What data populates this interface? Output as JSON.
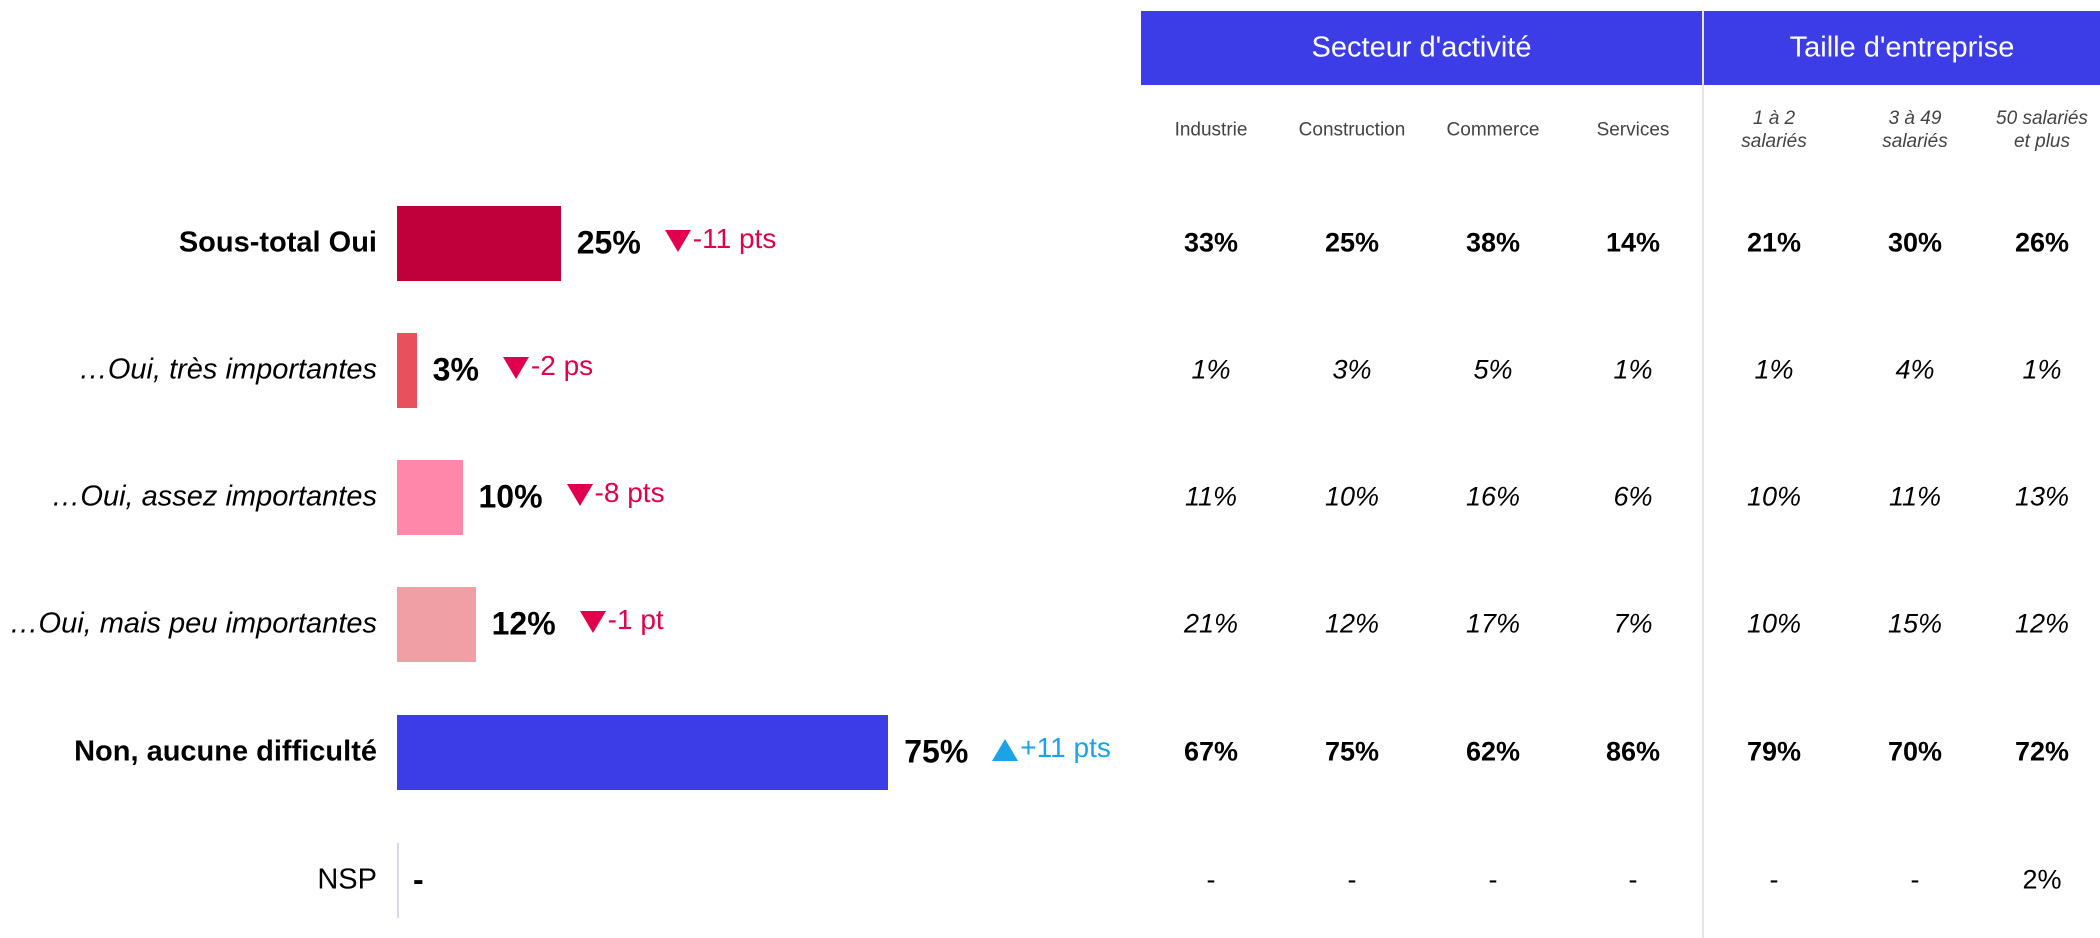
{
  "chart_data": {
    "type": "bar",
    "orientation": "horizontal",
    "categories": [
      "Sous-total Oui",
      "…Oui, très importantes",
      "…Oui, assez importantes",
      "…Oui, mais peu importantes",
      "Non, aucune difficulté",
      "NSP"
    ],
    "values": [
      25,
      3,
      10,
      12,
      75,
      null
    ],
    "value_labels": [
      "25%",
      "3%",
      "10%",
      "12%",
      "75%",
      "-"
    ],
    "colors": [
      "#c0003a",
      "#e8505b",
      "#ff88aa",
      "#f0a0a5",
      "#3d3de8",
      null
    ],
    "deltas": [
      -11,
      -2,
      -8,
      -1,
      11,
      null
    ],
    "delta_labels": [
      "-11 pts",
      "-2 ps",
      "-8 pts",
      "-1 pt",
      "+11 pts",
      null
    ],
    "delta_colors": {
      "down": "#e0004d",
      "up": "#1aa3e8"
    }
  },
  "table": {
    "groups": [
      {
        "label": "Secteur d'activité",
        "columns": [
          "Industrie",
          "Construction",
          "Commerce",
          "Services"
        ]
      },
      {
        "label": "Taille d'entreprise",
        "columns": [
          "1 à 2 salariés",
          "3 à 49 salariés",
          "50 salariés et plus"
        ]
      }
    ],
    "header_color": "#3d3de8",
    "rows": [
      [
        "33%",
        "25%",
        "38%",
        "14%",
        "21%",
        "30%",
        "26%"
      ],
      [
        "1%",
        "3%",
        "5%",
        "1%",
        "1%",
        "4%",
        "1%"
      ],
      [
        "11%",
        "10%",
        "16%",
        "6%",
        "10%",
        "11%",
        "13%"
      ],
      [
        "21%",
        "12%",
        "17%",
        "7%",
        "10%",
        "15%",
        "12%"
      ],
      [
        "67%",
        "75%",
        "62%",
        "86%",
        "79%",
        "70%",
        "72%"
      ],
      [
        "-",
        "-",
        "-",
        "-",
        "-",
        "-",
        "2%"
      ]
    ]
  }
}
